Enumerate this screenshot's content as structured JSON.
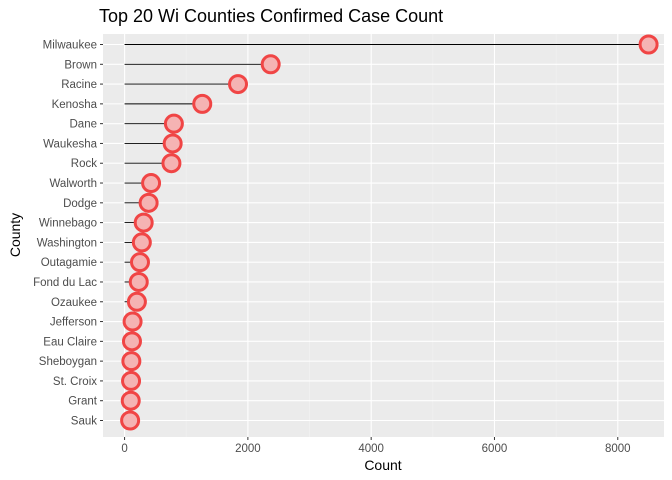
{
  "chart_data": {
    "type": "lollipop",
    "title": "Top 20 Wi Counties Confirmed Case Count",
    "xlabel": "Count",
    "ylabel": "County",
    "xlim": [
      -350,
      8750
    ],
    "xticks": [
      0,
      2000,
      4000,
      6000,
      8000
    ],
    "xtick_labels": [
      "0",
      "2000",
      "4000",
      "6000",
      "8000"
    ],
    "grid": true,
    "categories": [
      "Milwaukee",
      "Brown",
      "Racine",
      "Kenosha",
      "Dane",
      "Waukesha",
      "Rock",
      "Walworth",
      "Dodge",
      "Winnebago",
      "Washington",
      "Outagamie",
      "Fond du Lac",
      "Ozaukee",
      "Jefferson",
      "Eau Claire",
      "Sheboygan",
      "St. Croix",
      "Grant",
      "Sauk"
    ],
    "values": [
      8500,
      2370,
      1840,
      1260,
      800,
      780,
      760,
      430,
      390,
      310,
      280,
      250,
      230,
      200,
      130,
      120,
      110,
      105,
      100,
      90
    ],
    "colors": {
      "panel": "#ebebeb",
      "grid_major": "#ffffff",
      "grid_minor": "#f2f2f2",
      "point_stroke": "#f04545",
      "point_fill": "#f5b3b3",
      "segment": "#000000",
      "tick_mark": "#333333"
    }
  }
}
